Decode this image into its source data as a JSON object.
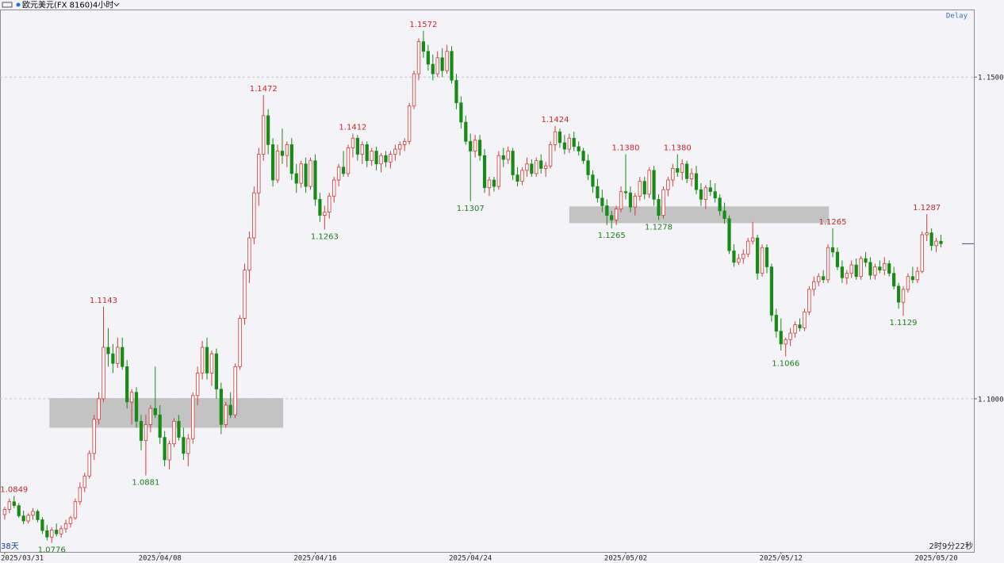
{
  "chart_data": {
    "type": "candlestick",
    "title": "欧元美元(FX 8160)",
    "period": "4小时",
    "status": "Delay",
    "footer_left": "38天",
    "footer_right": "2时9分22秒",
    "up_color": "#d23c3c",
    "down_color": "#178a17",
    "high_label_color": "#c62828",
    "low_label_color": "#1e7d1e",
    "zone_color": "#c3c3c3",
    "grid": true,
    "ylim": [
      1.0762,
      1.1605
    ],
    "yticks": [
      {
        "value": 1.1,
        "label": "1.1000"
      },
      {
        "value": 1.15,
        "label": "1.1500"
      }
    ],
    "xlim": [
      -1,
      206
    ],
    "xticks": [
      {
        "value": 0,
        "label": "2025/03/31"
      },
      {
        "value": 33,
        "label": "2025/04/08"
      },
      {
        "value": 66,
        "label": "2025/04/16"
      },
      {
        "value": 99,
        "label": "2025/04/24"
      },
      {
        "value": 132,
        "label": "2025/05/02"
      },
      {
        "value": 165,
        "label": "2025/05/12"
      },
      {
        "value": 198,
        "label": "2025/05/20"
      }
    ],
    "price_line": 1.1241,
    "zones": [
      {
        "x": [
          9.5,
          59.2
        ],
        "y": [
          1.0955,
          1.1001
        ]
      },
      {
        "x": [
          120,
          175.2
        ],
        "y": [
          1.1273,
          1.1299
        ]
      }
    ],
    "annotations": [
      {
        "x": 2,
        "value": 1.0849,
        "label": "1.0849",
        "side": "high"
      },
      {
        "x": 10,
        "value": 1.0776,
        "label": "1.0776",
        "side": "low"
      },
      {
        "x": 21,
        "value": 1.1143,
        "label": "1.1143",
        "side": "high"
      },
      {
        "x": 30,
        "value": 1.0881,
        "label": "1.0881",
        "side": "low"
      },
      {
        "x": 55,
        "value": 1.1472,
        "label": "1.1472",
        "side": "high"
      },
      {
        "x": 68,
        "value": 1.1263,
        "label": "1.1263",
        "side": "low"
      },
      {
        "x": 74,
        "value": 1.1412,
        "label": "1.1412",
        "side": "high"
      },
      {
        "x": 89,
        "value": 1.1572,
        "label": "1.1572",
        "side": "high"
      },
      {
        "x": 99,
        "value": 1.1307,
        "label": "1.1307",
        "side": "low"
      },
      {
        "x": 117,
        "value": 1.1424,
        "label": "1.1424",
        "side": "high"
      },
      {
        "x": 129,
        "value": 1.1265,
        "label": "1.1265",
        "side": "low"
      },
      {
        "x": 132,
        "value": 1.138,
        "label": "1.1380",
        "side": "high"
      },
      {
        "x": 139,
        "value": 1.1278,
        "label": "1.1278",
        "side": "low"
      },
      {
        "x": 143,
        "value": 1.138,
        "label": "1.1380",
        "side": "high"
      },
      {
        "x": 166,
        "value": 1.1066,
        "label": "1.1066",
        "side": "low"
      },
      {
        "x": 176,
        "value": 1.1265,
        "label": "1.1265",
        "side": "high"
      },
      {
        "x": 191,
        "value": 1.1129,
        "label": "1.1129",
        "side": "low"
      },
      {
        "x": 196,
        "value": 1.1287,
        "label": "1.1287",
        "side": "high"
      }
    ],
    "candles": [
      [
        1.082,
        1.0832,
        1.0812,
        1.0828
      ],
      [
        1.0828,
        1.0845,
        1.0822,
        1.084
      ],
      [
        1.084,
        1.0849,
        1.083,
        1.0834
      ],
      [
        1.0834,
        1.0838,
        1.0815,
        1.0818
      ],
      [
        1.0818,
        1.0826,
        1.0805,
        1.081
      ],
      [
        1.081,
        1.0822,
        1.0806,
        1.0819
      ],
      [
        1.0819,
        1.083,
        1.0812,
        1.0825
      ],
      [
        1.0825,
        1.0828,
        1.0808,
        1.0812
      ],
      [
        1.0812,
        1.0816,
        1.079,
        1.0795
      ],
      [
        1.0795,
        1.0804,
        1.078,
        1.0785
      ],
      [
        1.0785,
        1.08,
        1.0776,
        1.0796
      ],
      [
        1.0796,
        1.0806,
        1.0786,
        1.079
      ],
      [
        1.079,
        1.0803,
        1.0784,
        1.0798
      ],
      [
        1.0798,
        1.0812,
        1.0792,
        1.0806
      ],
      [
        1.0806,
        1.0818,
        1.08,
        1.0815
      ],
      [
        1.0815,
        1.0845,
        1.0812,
        1.084
      ],
      [
        1.084,
        1.087,
        1.0835,
        1.0862
      ],
      [
        1.0862,
        1.0885,
        1.0855,
        1.088
      ],
      [
        1.088,
        1.092,
        1.0876,
        1.0915
      ],
      [
        1.0915,
        1.0975,
        1.0905,
        1.0968
      ],
      [
        1.0968,
        1.101,
        1.096,
        1.1
      ],
      [
        1.1,
        1.1143,
        1.0995,
        1.108
      ],
      [
        1.108,
        1.111,
        1.105,
        1.107
      ],
      [
        1.107,
        1.1085,
        1.104,
        1.1055
      ],
      [
        1.1055,
        1.1095,
        1.1048,
        1.108
      ],
      [
        1.108,
        1.1095,
        1.1045,
        1.105
      ],
      [
        1.105,
        1.106,
        1.0985,
        1.0995
      ],
      [
        1.0995,
        1.1015,
        1.096,
        1.101
      ],
      [
        1.101,
        1.1018,
        1.0955,
        1.0965
      ],
      [
        1.0965,
        1.0975,
        1.092,
        1.0935
      ],
      [
        1.0935,
        1.0975,
        1.0881,
        1.096
      ],
      [
        1.096,
        1.099,
        1.0948,
        1.0985
      ],
      [
        1.0985,
        1.105,
        1.097,
        1.0975
      ],
      [
        1.0975,
        1.099,
        1.093,
        1.094
      ],
      [
        1.094,
        1.095,
        1.0895,
        1.0905
      ],
      [
        1.0905,
        1.0935,
        1.089,
        1.093
      ],
      [
        1.093,
        1.097,
        1.0925,
        1.0965
      ],
      [
        1.0965,
        1.0975,
        1.0935,
        1.094
      ],
      [
        1.094,
        1.0955,
        1.0905,
        1.0915
      ],
      [
        1.0915,
        1.0945,
        1.0895,
        1.0938
      ],
      [
        1.0938,
        1.101,
        1.093,
        1.1005
      ],
      [
        1.1005,
        1.105,
        1.099,
        1.104
      ],
      [
        1.104,
        1.109,
        1.103,
        1.108
      ],
      [
        1.108,
        1.1095,
        1.103,
        1.104
      ],
      [
        1.104,
        1.1075,
        1.102,
        1.107
      ],
      [
        1.107,
        1.1078,
        1.1,
        1.1015
      ],
      [
        1.1015,
        1.1025,
        1.0945,
        1.096
      ],
      [
        1.096,
        1.0995,
        1.0955,
        1.099
      ],
      [
        1.099,
        1.101,
        1.097,
        1.0975
      ],
      [
        1.0975,
        1.1055,
        1.097,
        1.105
      ],
      [
        1.105,
        1.113,
        1.1045,
        1.1125
      ],
      [
        1.1125,
        1.121,
        1.1115,
        1.12
      ],
      [
        1.12,
        1.126,
        1.118,
        1.125
      ],
      [
        1.125,
        1.133,
        1.124,
        1.132
      ],
      [
        1.132,
        1.139,
        1.13,
        1.138
      ],
      [
        1.138,
        1.1472,
        1.137,
        1.144
      ],
      [
        1.144,
        1.145,
        1.138,
        1.1395
      ],
      [
        1.1395,
        1.1405,
        1.133,
        1.134
      ],
      [
        1.134,
        1.1395,
        1.1335,
        1.1385
      ],
      [
        1.1385,
        1.142,
        1.1365,
        1.1378
      ],
      [
        1.1378,
        1.14,
        1.136,
        1.1395
      ],
      [
        1.1395,
        1.1405,
        1.134,
        1.135
      ],
      [
        1.135,
        1.1365,
        1.132,
        1.1335
      ],
      [
        1.1335,
        1.137,
        1.1328,
        1.1365
      ],
      [
        1.1365,
        1.1375,
        1.132,
        1.133
      ],
      [
        1.133,
        1.1375,
        1.1325,
        1.137
      ],
      [
        1.137,
        1.138,
        1.13,
        1.131
      ],
      [
        1.131,
        1.132,
        1.1275,
        1.1285
      ],
      [
        1.1285,
        1.13,
        1.1263,
        1.129
      ],
      [
        1.129,
        1.132,
        1.128,
        1.1315
      ],
      [
        1.1315,
        1.1345,
        1.1305,
        1.134
      ],
      [
        1.134,
        1.1365,
        1.133,
        1.136
      ],
      [
        1.136,
        1.1385,
        1.1345,
        1.135
      ],
      [
        1.135,
        1.1395,
        1.1345,
        1.139
      ],
      [
        1.139,
        1.1412,
        1.1375,
        1.1405
      ],
      [
        1.1405,
        1.141,
        1.137,
        1.138
      ],
      [
        1.138,
        1.14,
        1.1365,
        1.1395
      ],
      [
        1.1395,
        1.14,
        1.136,
        1.137
      ],
      [
        1.137,
        1.139,
        1.1362,
        1.1385
      ],
      [
        1.1385,
        1.1392,
        1.1355,
        1.1365
      ],
      [
        1.1365,
        1.1382,
        1.1352,
        1.1378
      ],
      [
        1.1378,
        1.1385,
        1.136,
        1.1368
      ],
      [
        1.1368,
        1.1385,
        1.1358,
        1.138
      ],
      [
        1.138,
        1.1395,
        1.137,
        1.1388
      ],
      [
        1.1388,
        1.14,
        1.1378,
        1.1395
      ],
      [
        1.1395,
        1.1405,
        1.1385,
        1.14
      ],
      [
        1.14,
        1.146,
        1.1395,
        1.1455
      ],
      [
        1.1455,
        1.151,
        1.145,
        1.1505
      ],
      [
        1.1505,
        1.156,
        1.1495,
        1.1555
      ],
      [
        1.1555,
        1.1572,
        1.153,
        1.154
      ],
      [
        1.154,
        1.155,
        1.151,
        1.152
      ],
      [
        1.152,
        1.1535,
        1.1495,
        1.1505
      ],
      [
        1.1505,
        1.154,
        1.15,
        1.153
      ],
      [
        1.153,
        1.1545,
        1.15,
        1.151
      ],
      [
        1.151,
        1.155,
        1.1505,
        1.154
      ],
      [
        1.154,
        1.1548,
        1.149,
        1.1495
      ],
      [
        1.1495,
        1.1505,
        1.145,
        1.146
      ],
      [
        1.146,
        1.147,
        1.142,
        1.143
      ],
      [
        1.143,
        1.144,
        1.1395,
        1.14
      ],
      [
        1.14,
        1.1412,
        1.1307,
        1.1385
      ],
      [
        1.1385,
        1.141,
        1.1375,
        1.1402
      ],
      [
        1.1402,
        1.141,
        1.137,
        1.1378
      ],
      [
        1.1378,
        1.1388,
        1.132,
        1.1328
      ],
      [
        1.1328,
        1.1345,
        1.1315,
        1.134
      ],
      [
        1.134,
        1.1345,
        1.1322,
        1.133
      ],
      [
        1.133,
        1.1385,
        1.1325,
        1.1378
      ],
      [
        1.1378,
        1.139,
        1.136,
        1.1372
      ],
      [
        1.1372,
        1.1392,
        1.1365,
        1.1385
      ],
      [
        1.1385,
        1.139,
        1.134,
        1.1348
      ],
      [
        1.1348,
        1.136,
        1.133,
        1.1338
      ],
      [
        1.1338,
        1.136,
        1.1332,
        1.1355
      ],
      [
        1.1355,
        1.1375,
        1.1345,
        1.1365
      ],
      [
        1.1365,
        1.1372,
        1.1345,
        1.135
      ],
      [
        1.135,
        1.1375,
        1.1345,
        1.137
      ],
      [
        1.137,
        1.138,
        1.135,
        1.1358
      ],
      [
        1.1358,
        1.1368,
        1.1345,
        1.1362
      ],
      [
        1.1362,
        1.14,
        1.1358,
        1.1395
      ],
      [
        1.1395,
        1.1424,
        1.1385,
        1.1415
      ],
      [
        1.1415,
        1.142,
        1.139,
        1.1398
      ],
      [
        1.1398,
        1.141,
        1.138,
        1.1388
      ],
      [
        1.1388,
        1.1412,
        1.1382,
        1.1405
      ],
      [
        1.1405,
        1.1415,
        1.1385,
        1.1392
      ],
      [
        1.1392,
        1.14,
        1.1378,
        1.1385
      ],
      [
        1.1385,
        1.139,
        1.1365,
        1.137
      ],
      [
        1.137,
        1.138,
        1.134,
        1.1348
      ],
      [
        1.1348,
        1.1355,
        1.132,
        1.133
      ],
      [
        1.133,
        1.1342,
        1.1305,
        1.1312
      ],
      [
        1.1312,
        1.1325,
        1.129,
        1.13
      ],
      [
        1.13,
        1.131,
        1.127,
        1.1285
      ],
      [
        1.1285,
        1.1292,
        1.1265,
        1.1278
      ],
      [
        1.1278,
        1.13,
        1.127,
        1.1295
      ],
      [
        1.1295,
        1.133,
        1.129,
        1.1322
      ],
      [
        1.1322,
        1.138,
        1.131,
        1.132
      ],
      [
        1.132,
        1.133,
        1.129,
        1.1298
      ],
      [
        1.1298,
        1.132,
        1.1285,
        1.1315
      ],
      [
        1.1315,
        1.1345,
        1.1308,
        1.1338
      ],
      [
        1.1338,
        1.1345,
        1.131,
        1.1318
      ],
      [
        1.1318,
        1.136,
        1.1312,
        1.1355
      ],
      [
        1.1355,
        1.1362,
        1.13,
        1.131
      ],
      [
        1.131,
        1.1318,
        1.1278,
        1.1285
      ],
      [
        1.1285,
        1.133,
        1.128,
        1.1325
      ],
      [
        1.1325,
        1.1345,
        1.1315,
        1.134
      ],
      [
        1.134,
        1.1365,
        1.133,
        1.1358
      ],
      [
        1.1358,
        1.138,
        1.1345,
        1.1352
      ],
      [
        1.1352,
        1.1372,
        1.134,
        1.1365
      ],
      [
        1.1365,
        1.137,
        1.1335,
        1.1342
      ],
      [
        1.1342,
        1.1358,
        1.133,
        1.135
      ],
      [
        1.135,
        1.1362,
        1.1318,
        1.1325
      ],
      [
        1.1325,
        1.1335,
        1.13,
        1.131
      ],
      [
        1.131,
        1.1332,
        1.1295,
        1.1328
      ],
      [
        1.1328,
        1.134,
        1.1315,
        1.1322
      ],
      [
        1.1322,
        1.1335,
        1.1305,
        1.1312
      ],
      [
        1.1312,
        1.1318,
        1.1285,
        1.1292
      ],
      [
        1.1292,
        1.1305,
        1.1272,
        1.128
      ],
      [
        1.128,
        1.1285,
        1.1225,
        1.123
      ],
      [
        1.123,
        1.124,
        1.1205,
        1.1212
      ],
      [
        1.1212,
        1.1225,
        1.1208,
        1.1218
      ],
      [
        1.1218,
        1.1232,
        1.121,
        1.1225
      ],
      [
        1.1225,
        1.125,
        1.122,
        1.1245
      ],
      [
        1.1245,
        1.1275,
        1.124,
        1.125
      ],
      [
        1.125,
        1.1255,
        1.1185,
        1.1195
      ],
      [
        1.1195,
        1.124,
        1.119,
        1.1235
      ],
      [
        1.1235,
        1.124,
        1.1195,
        1.1205
      ],
      [
        1.1205,
        1.121,
        1.112,
        1.113
      ],
      [
        1.113,
        1.114,
        1.1095,
        1.1105
      ],
      [
        1.1105,
        1.1125,
        1.1075,
        1.1085
      ],
      [
        1.1085,
        1.1095,
        1.1066,
        1.1092
      ],
      [
        1.1092,
        1.111,
        1.1082,
        1.1102
      ],
      [
        1.1102,
        1.112,
        1.1095,
        1.1115
      ],
      [
        1.1115,
        1.1125,
        1.1105,
        1.111
      ],
      [
        1.111,
        1.114,
        1.1105,
        1.1135
      ],
      [
        1.1135,
        1.1175,
        1.113,
        1.117
      ],
      [
        1.117,
        1.119,
        1.116,
        1.1182
      ],
      [
        1.1182,
        1.1195,
        1.1175,
        1.119
      ],
      [
        1.119,
        1.12,
        1.118,
        1.1185
      ],
      [
        1.1185,
        1.124,
        1.118,
        1.1235
      ],
      [
        1.1235,
        1.1265,
        1.122,
        1.1228
      ],
      [
        1.1228,
        1.1235,
        1.12,
        1.1205
      ],
      [
        1.1205,
        1.1215,
        1.118,
        1.1188
      ],
      [
        1.1188,
        1.12,
        1.1178,
        1.1195
      ],
      [
        1.1195,
        1.1215,
        1.1188,
        1.1208
      ],
      [
        1.1208,
        1.1218,
        1.1185,
        1.119
      ],
      [
        1.119,
        1.1222,
        1.1185,
        1.1218
      ],
      [
        1.1218,
        1.1228,
        1.1205,
        1.1212
      ],
      [
        1.1212,
        1.122,
        1.1185,
        1.1192
      ],
      [
        1.1192,
        1.121,
        1.1185,
        1.1205
      ],
      [
        1.1205,
        1.1215,
        1.1195,
        1.12
      ],
      [
        1.12,
        1.122,
        1.1192,
        1.121
      ],
      [
        1.121,
        1.1215,
        1.119,
        1.1195
      ],
      [
        1.1195,
        1.1205,
        1.117,
        1.1175
      ],
      [
        1.1175,
        1.118,
        1.114,
        1.115
      ],
      [
        1.115,
        1.1175,
        1.1129,
        1.117
      ],
      [
        1.117,
        1.1195,
        1.1165,
        1.119
      ],
      [
        1.119,
        1.1205,
        1.118,
        1.1185
      ],
      [
        1.1185,
        1.1205,
        1.118,
        1.1198
      ],
      [
        1.1198,
        1.126,
        1.1195,
        1.1255
      ],
      [
        1.1255,
        1.1287,
        1.1245,
        1.1258
      ],
      [
        1.1258,
        1.1265,
        1.123,
        1.1238
      ],
      [
        1.1238,
        1.125,
        1.1228,
        1.1245
      ],
      [
        1.1245,
        1.1255,
        1.1235,
        1.1241
      ]
    ]
  }
}
